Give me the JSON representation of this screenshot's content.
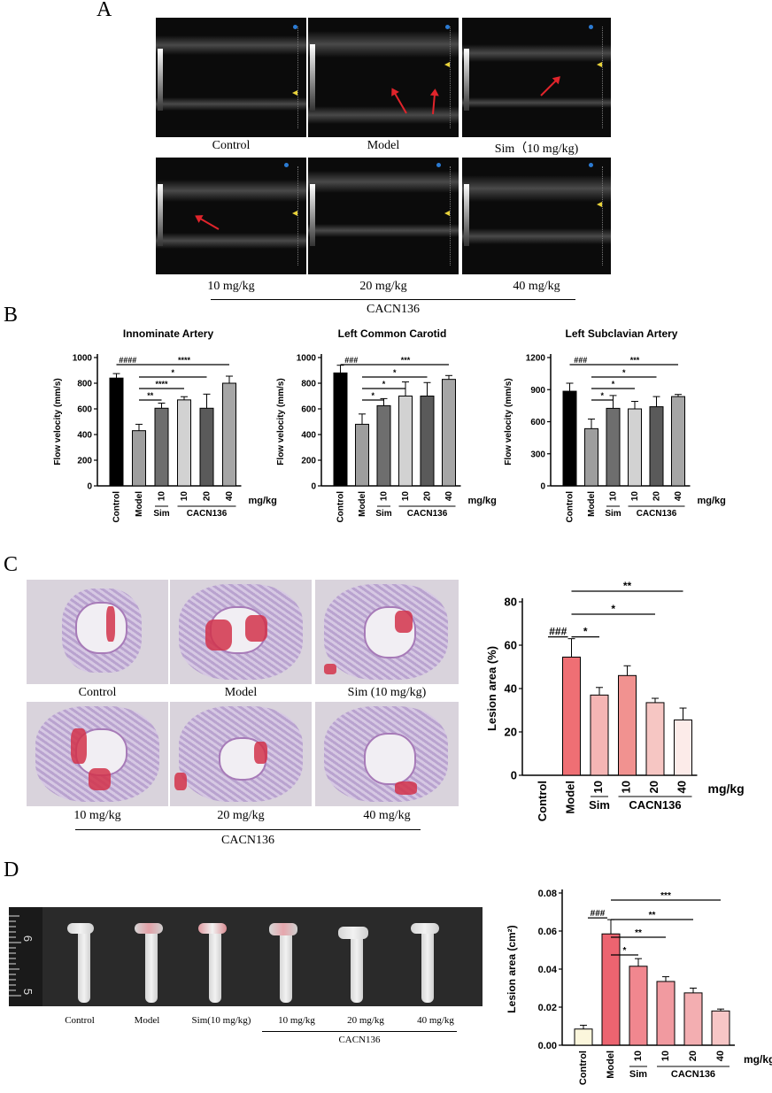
{
  "panels": {
    "a": "A",
    "b": "B",
    "c": "C",
    "d": "D"
  },
  "panel_a": {
    "row1": [
      "Control",
      "Model",
      "Sim（10 mg/kg)"
    ],
    "row2": [
      "10 mg/kg",
      "20 mg/kg",
      "40 mg/kg"
    ],
    "group": "CACN136"
  },
  "panel_c": {
    "row1": [
      "Control",
      "Model",
      "Sim (10 mg/kg)"
    ],
    "row2": [
      "10 mg/kg",
      "20 mg/kg",
      "40 mg/kg"
    ],
    "group": "CACN136"
  },
  "panel_d": {
    "labels": [
      "Control",
      "Model",
      "Sim(10 mg/kg)",
      "10 mg/kg",
      "20 mg/kg",
      "40 mg/kg"
    ],
    "group": "CACN136",
    "ruler_labels": [
      "6",
      "5"
    ]
  },
  "colors": {
    "red": "#e0242b",
    "bar_black": "#000000",
    "ultrasound": "#0b0b0b"
  },
  "chart_data": [
    {
      "id": "b1",
      "type": "bar",
      "title": "Innominate Artery",
      "ylabel": "Flow velocity (mm/s)",
      "ylim": [
        0,
        1000
      ],
      "yticks": [
        0,
        200,
        400,
        600,
        800,
        1000
      ],
      "categories": [
        "Control",
        "Model",
        "10",
        "10",
        "20",
        "40"
      ],
      "groups": [
        "Sim",
        "CACN136"
      ],
      "unit": "mg/kg",
      "values": [
        840,
        430,
        605,
        670,
        605,
        800
      ],
      "errors": [
        35,
        50,
        40,
        25,
        110,
        55
      ],
      "colors": [
        "#000000",
        "#9e9e9e",
        "#6e6e6e",
        "#d2d2d2",
        "#5a5a5a",
        "#a6a6a6"
      ],
      "significance": [
        "####",
        "**",
        "****",
        "*",
        "****"
      ]
    },
    {
      "id": "b2",
      "type": "bar",
      "title": "Left Common Carotid",
      "ylabel": "Flow velocity (mm/s)",
      "ylim": [
        0,
        1000
      ],
      "yticks": [
        0,
        200,
        400,
        600,
        800,
        1000
      ],
      "categories": [
        "Control",
        "Model",
        "10",
        "10",
        "20",
        "40"
      ],
      "groups": [
        "Sim",
        "CACN136"
      ],
      "unit": "mg/kg",
      "values": [
        880,
        480,
        625,
        700,
        700,
        830
      ],
      "errors": [
        60,
        80,
        55,
        110,
        105,
        30
      ],
      "colors": [
        "#000000",
        "#9e9e9e",
        "#6e6e6e",
        "#d2d2d2",
        "#5a5a5a",
        "#a6a6a6"
      ],
      "significance": [
        "###",
        "*",
        "*",
        "*",
        "***"
      ]
    },
    {
      "id": "b3",
      "type": "bar",
      "title": "Left Subclavian Artery",
      "ylabel": "Flow velocity (mm/s)",
      "ylim": [
        0,
        1200
      ],
      "yticks": [
        0,
        300,
        600,
        900,
        1200
      ],
      "categories": [
        "Control",
        "Model",
        "10",
        "10",
        "20",
        "40"
      ],
      "groups": [
        "Sim",
        "CACN136"
      ],
      "unit": "mg/kg",
      "values": [
        885,
        535,
        725,
        720,
        740,
        835
      ],
      "errors": [
        75,
        90,
        120,
        70,
        95,
        20
      ],
      "colors": [
        "#000000",
        "#9e9e9e",
        "#6e6e6e",
        "#d2d2d2",
        "#5a5a5a",
        "#a6a6a6"
      ],
      "significance": [
        "###",
        "*",
        "*",
        "*",
        "***"
      ]
    },
    {
      "id": "c",
      "type": "bar",
      "ylabel": "Lesion area (%)",
      "ylim": [
        0,
        80
      ],
      "yticks": [
        0,
        20,
        40,
        60,
        80
      ],
      "categories": [
        "Control",
        "Model",
        "10",
        "10",
        "20",
        "40"
      ],
      "groups": [
        "Sim",
        "CACN136"
      ],
      "unit": "mg/kg",
      "values": [
        0,
        54.5,
        37,
        46,
        33.5,
        25.5
      ],
      "errors": [
        0,
        8.5,
        3.5,
        4.5,
        2,
        5.5
      ],
      "colors": [
        "#ffffff",
        "#ef6f74",
        "#f5b5b4",
        "#f19290",
        "#f6c6c3",
        "#fcebe9"
      ],
      "significance": [
        "###",
        "*",
        "*",
        "**"
      ]
    },
    {
      "id": "d",
      "type": "bar",
      "ylabel": "Lesion area (cm²)",
      "ylim": [
        0,
        0.08
      ],
      "yticks": [
        "0.00",
        "0.02",
        "0.04",
        "0.06",
        "0.08"
      ],
      "categories": [
        "Control",
        "Model",
        "10",
        "10",
        "20",
        "40"
      ],
      "groups": [
        "Sim",
        "CACN136"
      ],
      "unit": "mg/kg",
      "values": [
        0.0085,
        0.0585,
        0.0415,
        0.0335,
        0.0275,
        0.018
      ],
      "errors": [
        0.002,
        0.0075,
        0.004,
        0.0025,
        0.0025,
        0.001
      ],
      "colors": [
        "#fbf6dc",
        "#ec6470",
        "#f1878f",
        "#f19aa0",
        "#f3aeb1",
        "#f7c6c6"
      ],
      "significance": [
        "###",
        "*",
        "**",
        "**",
        "***"
      ]
    }
  ]
}
